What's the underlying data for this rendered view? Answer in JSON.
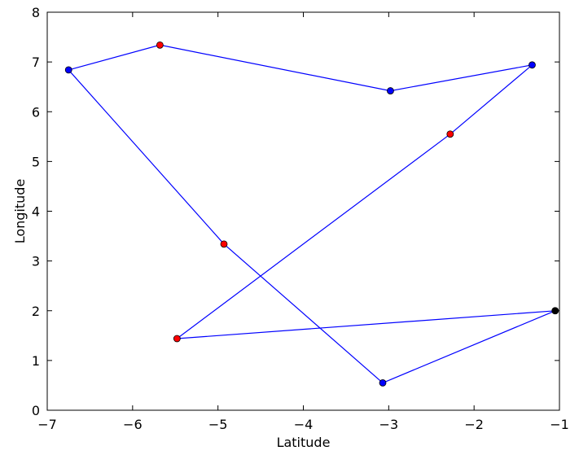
{
  "chart_data": {
    "type": "line",
    "xlabel": "Latitude",
    "ylabel": "Longitude",
    "xlim": [
      -7,
      -1
    ],
    "ylim": [
      0,
      8
    ],
    "grid": false,
    "x_ticks": [
      -7,
      -6,
      -5,
      -4,
      -3,
      -2,
      -1
    ],
    "x_tick_labels": [
      "−7",
      "−6",
      "−5",
      "−4",
      "−3",
      "−2",
      "−1"
    ],
    "y_ticks": [
      0,
      1,
      2,
      3,
      4,
      5,
      6,
      7,
      8
    ],
    "y_tick_labels": [
      "0",
      "1",
      "2",
      "3",
      "4",
      "5",
      "6",
      "7",
      "8"
    ],
    "line_color": "#0000ff",
    "series": [
      {
        "points": [
          {
            "x": -1.05,
            "y": 2.0,
            "color": "#000000"
          },
          {
            "x": -3.07,
            "y": 0.55,
            "color": "#0000ff"
          },
          {
            "x": -4.93,
            "y": 3.34,
            "color": "#ff0000"
          },
          {
            "x": -6.75,
            "y": 6.84,
            "color": "#0000ff"
          },
          {
            "x": -5.68,
            "y": 7.34,
            "color": "#ff0000"
          },
          {
            "x": -2.98,
            "y": 6.42,
            "color": "#0000ff"
          },
          {
            "x": -1.32,
            "y": 6.94,
            "color": "#0000ff"
          },
          {
            "x": -2.28,
            "y": 5.55,
            "color": "#ff0000"
          },
          {
            "x": -5.48,
            "y": 1.44,
            "color": "#ff0000"
          },
          {
            "x": -1.05,
            "y": 2.0,
            "color": "#000000"
          }
        ]
      }
    ]
  }
}
